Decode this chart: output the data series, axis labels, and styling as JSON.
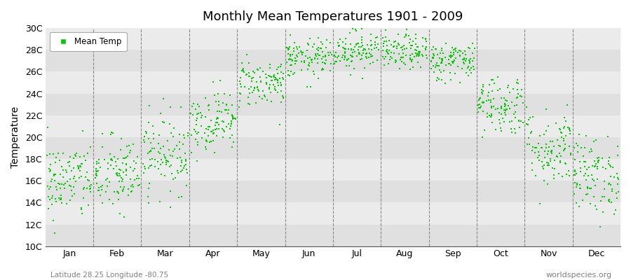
{
  "title": "Monthly Mean Temperatures 1901 - 2009",
  "ylabel": "Temperature",
  "xlabel_labels": [
    "Jan",
    "Feb",
    "Mar",
    "Apr",
    "May",
    "Jun",
    "Jul",
    "Aug",
    "Sep",
    "Oct",
    "Nov",
    "Dec"
  ],
  "ytick_labels": [
    "10C",
    "12C",
    "14C",
    "16C",
    "18C",
    "20C",
    "22C",
    "24C",
    "26C",
    "28C",
    "30C"
  ],
  "ytick_values": [
    10,
    12,
    14,
    16,
    18,
    20,
    22,
    24,
    26,
    28,
    30
  ],
  "ylim": [
    10,
    30
  ],
  "subtitle": "Latitude 28.25 Longitude -80.75",
  "watermark": "worldspecies.org",
  "dot_color": "#00CC00",
  "dot_size": 3,
  "bg_light": "#EBEBEB",
  "bg_dark": "#E0E0E0",
  "years": 109,
  "seed": 42,
  "monthly_means": [
    16.0,
    16.5,
    18.5,
    21.5,
    25.0,
    27.2,
    28.0,
    27.8,
    27.0,
    23.0,
    19.0,
    16.5
  ],
  "monthly_stds": [
    1.8,
    1.8,
    1.8,
    1.4,
    1.1,
    0.9,
    0.9,
    0.8,
    0.9,
    1.4,
    1.8,
    1.8
  ],
  "fig_width": 9.0,
  "fig_height": 4.0,
  "title_fontsize": 13,
  "axis_fontsize": 9,
  "ylabel_fontsize": 10
}
